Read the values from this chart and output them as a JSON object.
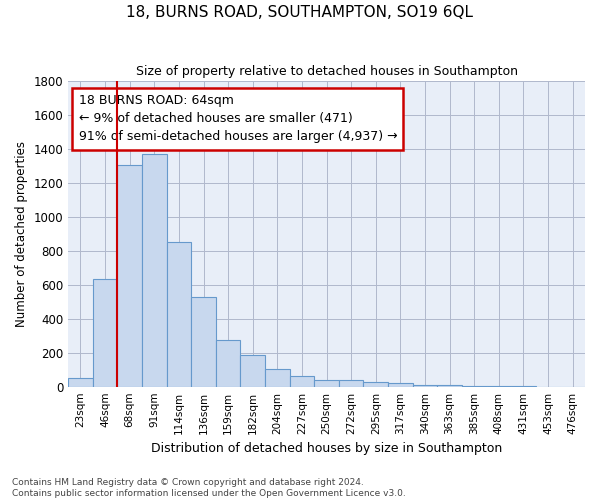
{
  "title": "18, BURNS ROAD, SOUTHAMPTON, SO19 6QL",
  "subtitle": "Size of property relative to detached houses in Southampton",
  "xlabel": "Distribution of detached houses by size in Southampton",
  "ylabel": "Number of detached properties",
  "categories": [
    "23sqm",
    "46sqm",
    "68sqm",
    "91sqm",
    "114sqm",
    "136sqm",
    "159sqm",
    "182sqm",
    "204sqm",
    "227sqm",
    "250sqm",
    "272sqm",
    "295sqm",
    "317sqm",
    "340sqm",
    "363sqm",
    "385sqm",
    "408sqm",
    "431sqm",
    "453sqm",
    "476sqm"
  ],
  "bar_values": [
    50,
    635,
    1305,
    1370,
    850,
    530,
    275,
    185,
    105,
    65,
    40,
    38,
    30,
    22,
    12,
    8,
    5,
    3,
    2,
    1,
    0
  ],
  "bar_color": "#c8d8ee",
  "bar_edge_color": "#6699cc",
  "background_color": "#e8eef8",
  "grid_color": "#b0b8cc",
  "ylim": [
    0,
    1800
  ],
  "yticks": [
    0,
    200,
    400,
    600,
    800,
    1000,
    1200,
    1400,
    1600,
    1800
  ],
  "vline_color": "#cc0000",
  "annotation_text": "18 BURNS ROAD: 64sqm\n← 9% of detached houses are smaller (471)\n91% of semi-detached houses are larger (4,937) →",
  "annotation_box_color": "#cc0000",
  "footer_line1": "Contains HM Land Registry data © Crown copyright and database right 2024.",
  "footer_line2": "Contains public sector information licensed under the Open Government Licence v3.0."
}
